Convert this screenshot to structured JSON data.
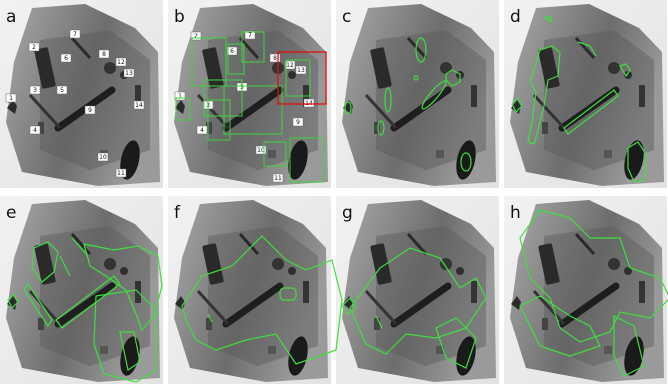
{
  "panels": [
    {
      "label": "a",
      "tags": [
        "1",
        "2",
        "3",
        "4",
        "5",
        "6",
        "7",
        "8",
        "9",
        "10",
        "11",
        "12",
        "13",
        "14"
      ]
    },
    {
      "label": "b",
      "tags": [
        "1",
        "2",
        "3",
        "4",
        "5",
        "6",
        "7",
        "8",
        "9",
        "10",
        "11",
        "12",
        "13",
        "14"
      ]
    },
    {
      "label": "c"
    },
    {
      "label": "d"
    },
    {
      "label": "e"
    },
    {
      "label": "f"
    },
    {
      "label": "g"
    },
    {
      "label": "h"
    }
  ]
}
